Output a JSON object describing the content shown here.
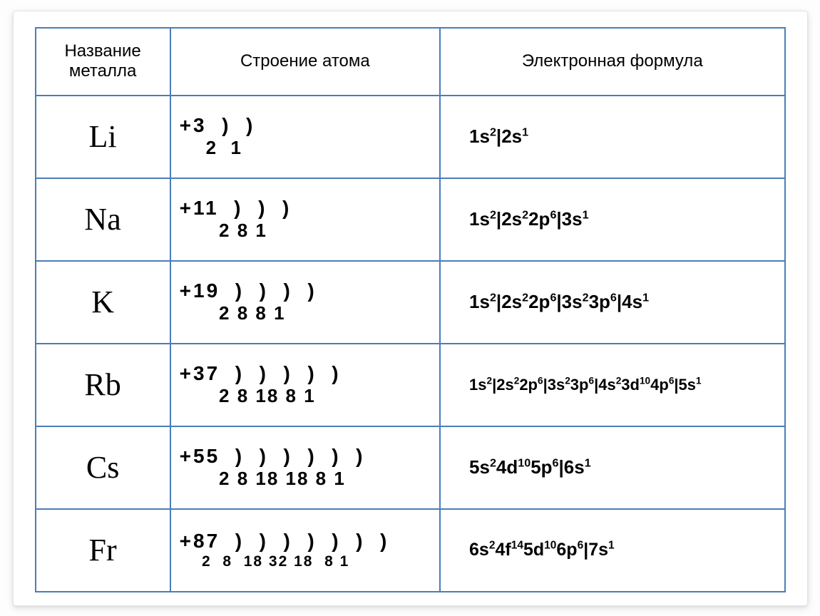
{
  "table": {
    "border_color": "#4a7db8",
    "background_color": "#ffffff",
    "columns": [
      {
        "header": "Название металла",
        "width_pct": 18,
        "align": "center"
      },
      {
        "header": "Строение атома",
        "width_pct": 36,
        "align": "left"
      },
      {
        "header": "Электронная формула",
        "width_pct": 46,
        "align": "left"
      }
    ],
    "header_fontsize": 24,
    "symbol_font": "Times New Roman",
    "symbol_fontsize": 44,
    "structure_fontsize": 28,
    "formula_fontsize": 26,
    "rows": [
      {
        "symbol": "Li",
        "nucleus": "+3",
        "shell_parens": "  )  )",
        "shell_numbers": " 2  1",
        "shells_indent_ch": 3,
        "formula": "1s<sup>2</sup>|2s<sup>1</sup>",
        "formula_fontsize": 26
      },
      {
        "symbol": "Na",
        "nucleus": "+11",
        "shell_parens": "  )  )  )",
        "shell_numbers": " 2 8 1",
        "shells_indent_ch": 5,
        "formula": "1s<sup>2</sup>|2s<sup>2</sup>2p<sup>6</sup>|3s<sup>1</sup>",
        "formula_fontsize": 26
      },
      {
        "symbol": "K",
        "nucleus": "+19",
        "shell_parens": "  )  )  )  )",
        "shell_numbers": " 2 8 8 1",
        "shells_indent_ch": 5,
        "formula": "1s<sup>2</sup>|2s<sup>2</sup>2p<sup>6</sup>|3s<sup>2</sup>3p<sup>6</sup>|4s<sup>1</sup>",
        "formula_fontsize": 26
      },
      {
        "symbol": "Rb",
        "nucleus": "+37",
        "shell_parens": "  )  )  )  )  )",
        "shell_numbers": " 2 8 18 8 1",
        "shells_indent_ch": 5,
        "formula": "1s<sup>2</sup>|2s<sup>2</sup>2p<sup>6</sup>|3s<sup>2</sup>3p<sup>6</sup>|4s<sup>2</sup>3d<sup>10</sup>4p<sup>6</sup>|5s<sup>1</sup>",
        "formula_fontsize": 22
      },
      {
        "symbol": "Cs",
        "nucleus": "+55",
        "shell_parens": "  )  )  )  )  )  )",
        "shell_numbers": " 2 8 18 18 8 1",
        "shells_indent_ch": 5,
        "formula": "5s<sup>2</sup>4d<sup>10</sup>5p<sup>6</sup>|6s<sup>1</sup>",
        "formula_fontsize": 26
      },
      {
        "symbol": "Fr",
        "nucleus": "+87",
        "shell_parens": "  )  )  )  )  )  )  )",
        "shell_numbers": "2  8  18 32 18  8 1",
        "shells_indent_ch": 4,
        "shells_fontsize": 21,
        "formula": "6s<sup>2</sup>4f<sup>14</sup>5d<sup>10</sup>6p<sup>6</sup>|7s<sup>1</sup>",
        "formula_fontsize": 25
      }
    ]
  }
}
